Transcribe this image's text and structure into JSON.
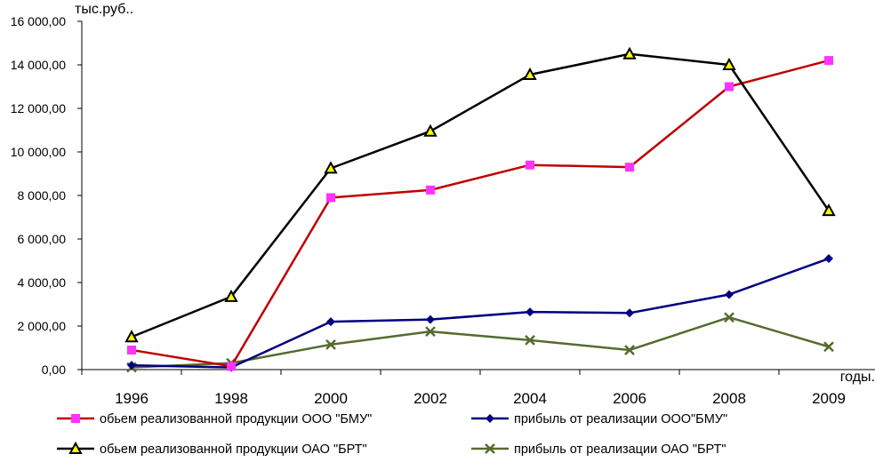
{
  "chart_data": {
    "type": "line",
    "title": "",
    "ylabel": "тыс.руб..",
    "xlabel": "годы.",
    "categories": [
      "1996",
      "1998",
      "2000",
      "2002",
      "2004",
      "2006",
      "2008",
      "2009"
    ],
    "ylim": [
      0,
      16000
    ],
    "yticks": [
      0,
      2000,
      4000,
      6000,
      8000,
      10000,
      12000,
      14000,
      16000
    ],
    "ytick_labels": [
      "0,00",
      "2 000,00",
      "4 000,00",
      "6 000,00",
      "8 000,00",
      "10 000,00",
      "12 000,00",
      "14 000,00",
      "16 000,00"
    ],
    "grid": false,
    "legend_position": "bottom",
    "series": [
      {
        "name": "обьем реализованной продукции ООО \"БМУ\"",
        "values": [
          900,
          150,
          7900,
          8250,
          9400,
          9300,
          13000,
          14200
        ],
        "color": "#c00000",
        "marker": "square",
        "marker_color": "#ff33ff"
      },
      {
        "name": "прибыль от реализации ООО\"БМУ\"",
        "values": [
          200,
          100,
          2200,
          2300,
          2650,
          2600,
          3450,
          5100
        ],
        "color": "#000080",
        "marker": "diamond",
        "marker_color": "#000080"
      },
      {
        "name": "обьем реализованной продукции ОАО \"БРТ\"",
        "values": [
          1500,
          3350,
          9250,
          10950,
          13550,
          14500,
          14000,
          7300
        ],
        "color": "#000000",
        "marker": "triangle",
        "marker_color": "#ffff00"
      },
      {
        "name": "прибыль от реализации ОАО \"БРТ\"",
        "values": [
          100,
          300,
          1150,
          1750,
          1350,
          900,
          2400,
          1050
        ],
        "color": "#556b2f",
        "marker": "x",
        "marker_color": "#556b2f"
      }
    ]
  }
}
